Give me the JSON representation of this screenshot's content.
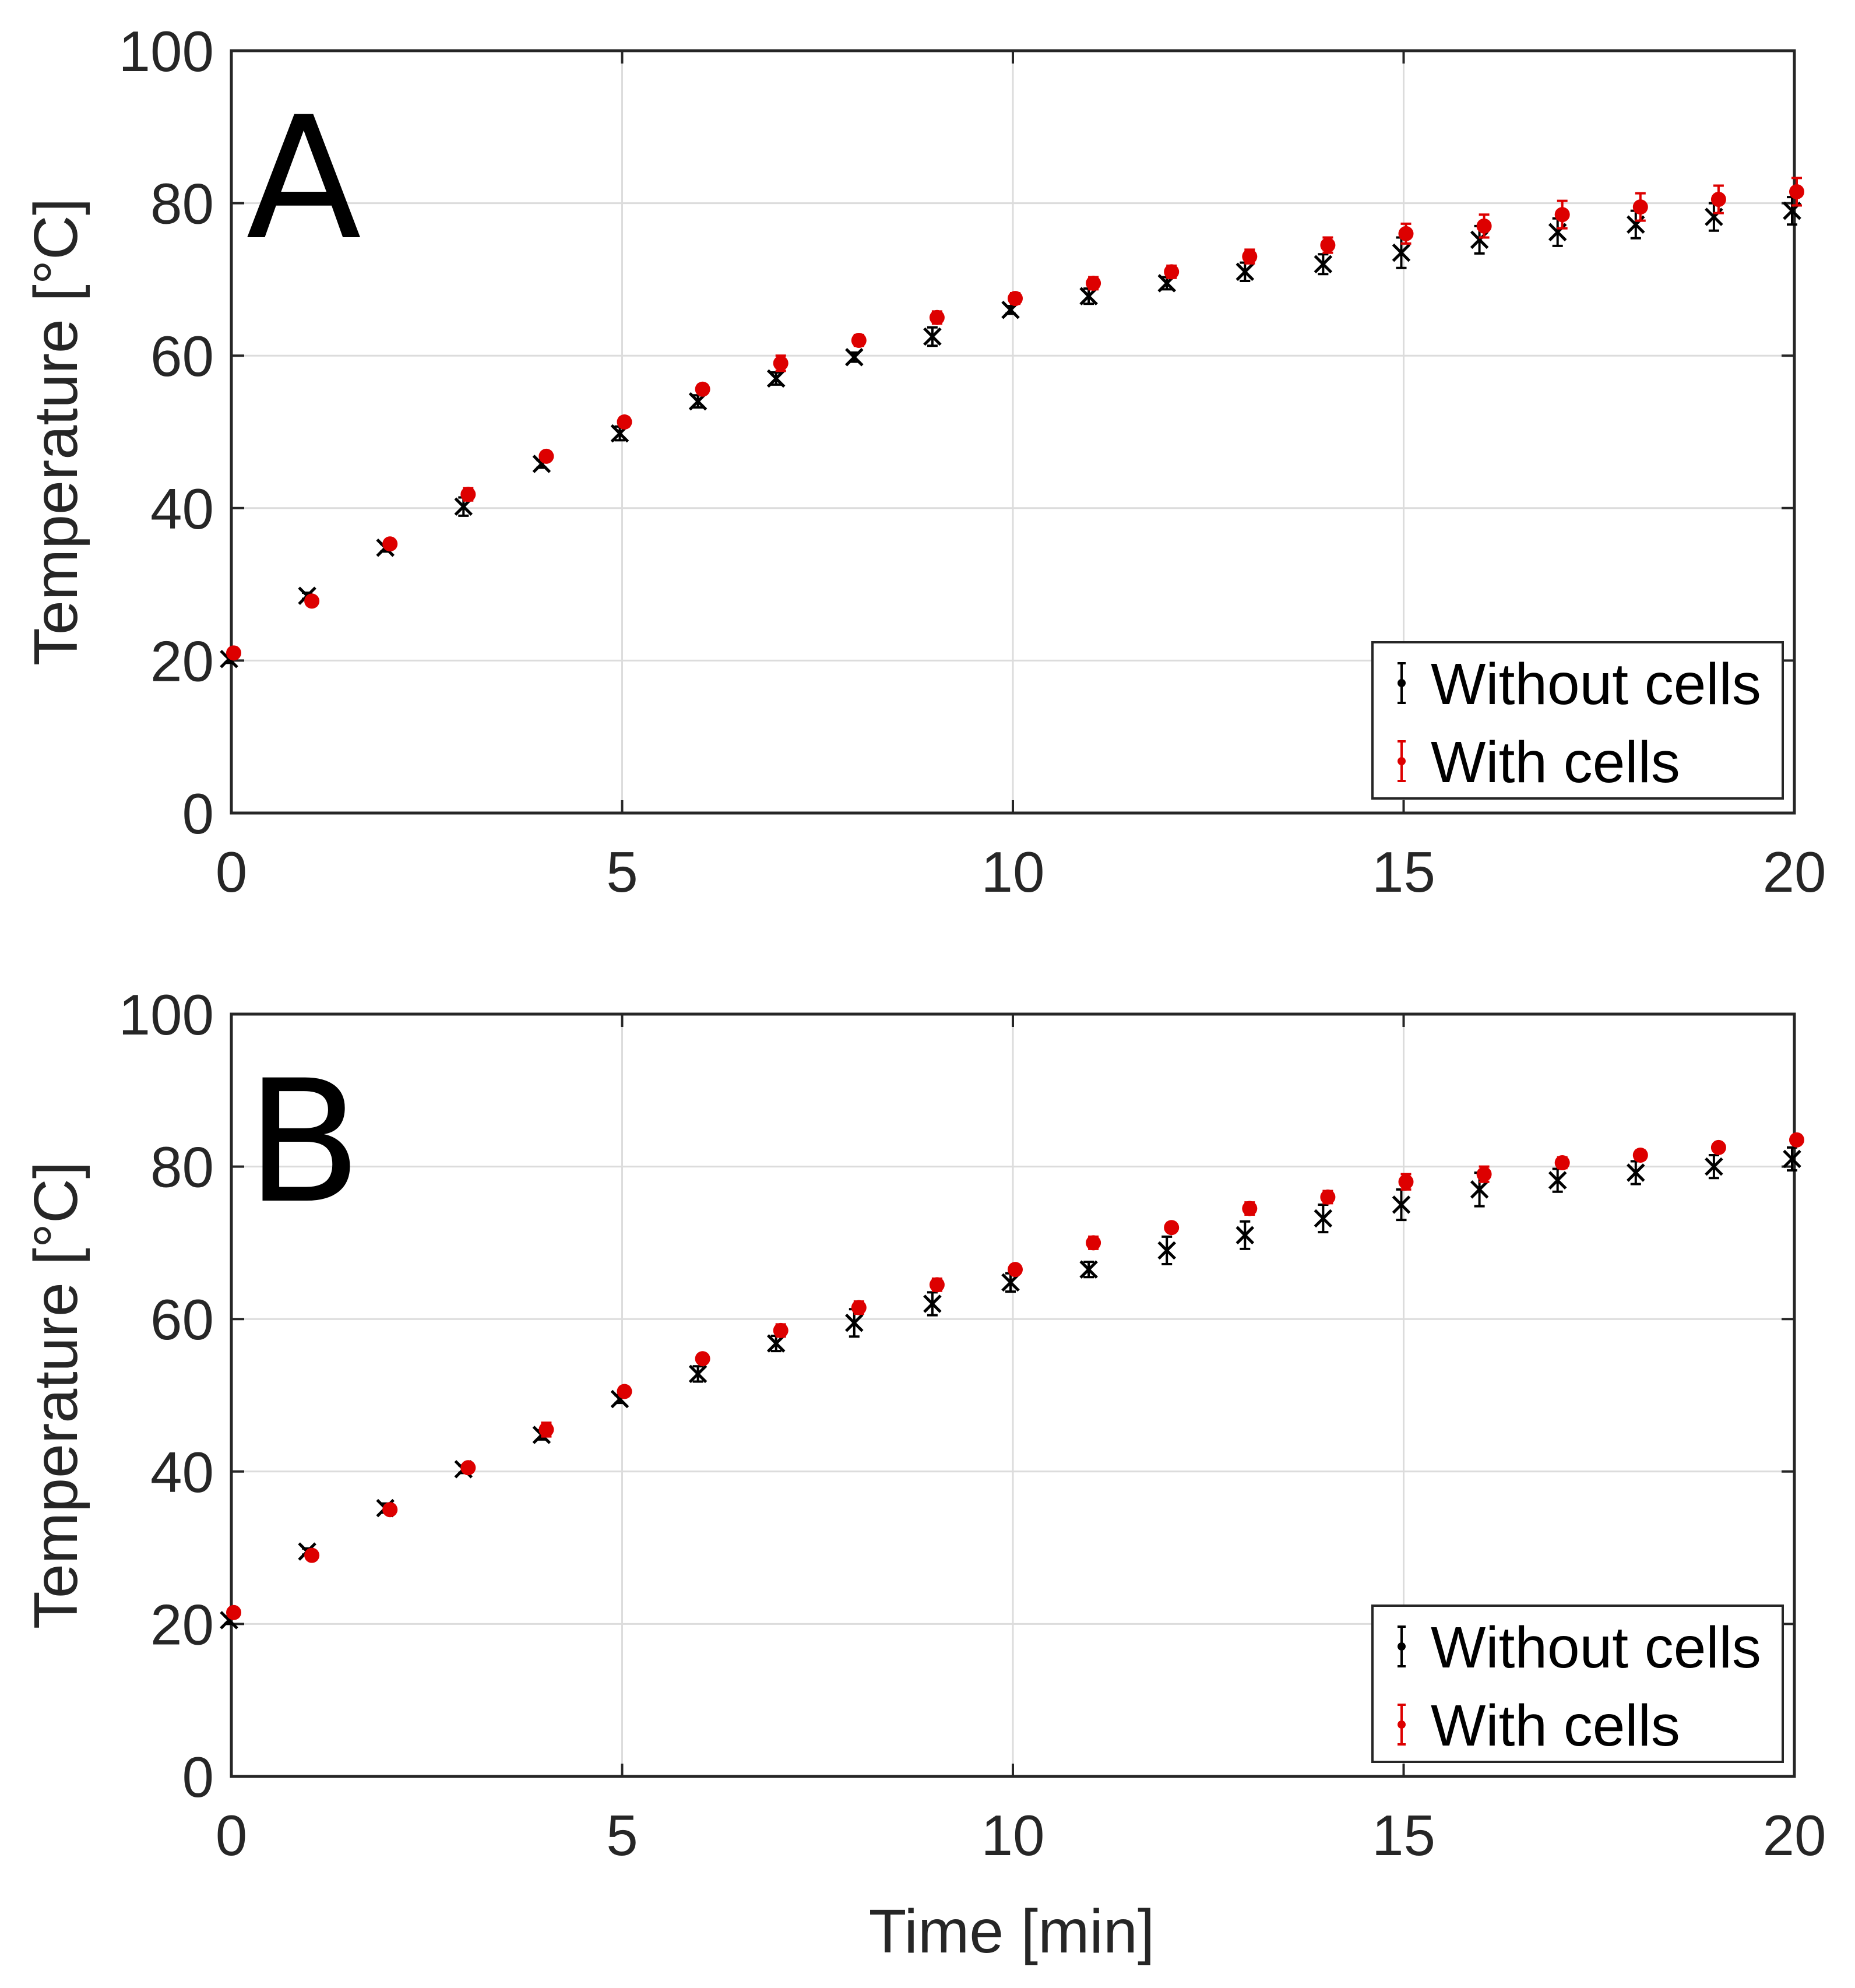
{
  "figure": {
    "xlabel": "Time [min]",
    "colors": {
      "without": "#000000",
      "with": "#dd0000",
      "grid": "#dcdcdc",
      "axis": "#262626"
    }
  },
  "chart_data": [
    {
      "type": "scatter",
      "panel_label": "A",
      "title": "",
      "xlabel": "Time [min]",
      "ylabel": "Temperature [°C]",
      "xlim": [
        0,
        20
      ],
      "ylim": [
        0,
        100
      ],
      "xticks": [
        "0",
        "5",
        "10",
        "15",
        "20"
      ],
      "yticks": [
        "0",
        "20",
        "40",
        "60",
        "80",
        "100"
      ],
      "grid": true,
      "legend_position": "bottom-right",
      "x": [
        0,
        1,
        2,
        3,
        4,
        5,
        6,
        7,
        8,
        9,
        10,
        11,
        12,
        13,
        14,
        15,
        16,
        17,
        18,
        19,
        20
      ],
      "series": [
        {
          "name": "Without cells",
          "marker": "x",
          "color": "#000000",
          "values": [
            20.2,
            28.5,
            34.8,
            40.2,
            45.8,
            49.8,
            54.0,
            57.0,
            59.8,
            62.5,
            66.0,
            67.8,
            69.5,
            71.0,
            72.0,
            73.5,
            75.2,
            76.2,
            77.2,
            78.2,
            79.0
          ],
          "errors": [
            0.5,
            0.4,
            0.5,
            1.2,
            0.5,
            0.9,
            0.8,
            0.8,
            0.6,
            1.2,
            0.5,
            1.0,
            0.8,
            1.2,
            1.3,
            2.0,
            1.8,
            1.8,
            1.8,
            1.8,
            1.8
          ]
        },
        {
          "name": "With cells",
          "marker": "circle",
          "color": "#dd0000",
          "values": [
            21.0,
            27.8,
            35.3,
            41.8,
            46.8,
            51.3,
            55.6,
            59.0,
            62.0,
            65.0,
            67.5,
            69.5,
            71.0,
            73.0,
            74.5,
            76.0,
            77.0,
            78.5,
            79.5,
            80.5,
            81.5
          ],
          "errors": [
            0.5,
            0.3,
            0.4,
            0.8,
            0.4,
            0.6,
            0.6,
            1.0,
            0.7,
            0.8,
            0.7,
            0.8,
            0.8,
            0.9,
            1.0,
            1.3,
            1.5,
            1.8,
            1.8,
            1.8,
            1.8
          ]
        }
      ]
    },
    {
      "type": "scatter",
      "panel_label": "B",
      "title": "",
      "xlabel": "Time [min]",
      "ylabel": "Temperature [°C]",
      "xlim": [
        0,
        20
      ],
      "ylim": [
        0,
        100
      ],
      "xticks": [
        "0",
        "5",
        "10",
        "15",
        "20"
      ],
      "yticks": [
        "0",
        "20",
        "40",
        "60",
        "80",
        "100"
      ],
      "grid": true,
      "legend_position": "bottom-right",
      "x": [
        0,
        1,
        2,
        3,
        4,
        5,
        6,
        7,
        8,
        9,
        10,
        11,
        12,
        13,
        14,
        15,
        16,
        17,
        18,
        19,
        20
      ],
      "series": [
        {
          "name": "Without cells",
          "marker": "x",
          "color": "#000000",
          "values": [
            20.5,
            29.5,
            35.2,
            40.3,
            44.8,
            49.5,
            52.8,
            56.8,
            59.5,
            62.0,
            64.8,
            66.5,
            69.0,
            71.0,
            73.2,
            75.0,
            77.0,
            78.2,
            79.2,
            80.0,
            81.0
          ],
          "errors": [
            0.5,
            0.4,
            0.6,
            0.5,
            0.6,
            0.5,
            1.0,
            1.0,
            1.8,
            1.5,
            1.2,
            1.0,
            1.8,
            1.8,
            1.8,
            2.0,
            2.2,
            1.5,
            1.5,
            1.5,
            1.5
          ]
        },
        {
          "name": "With cells",
          "marker": "circle",
          "color": "#dd0000",
          "values": [
            21.5,
            29.0,
            35.0,
            40.5,
            45.5,
            50.5,
            54.8,
            58.5,
            61.5,
            64.5,
            66.5,
            70.0,
            72.0,
            74.5,
            76.0,
            78.0,
            79.0,
            80.5,
            81.5,
            82.5,
            83.5
          ],
          "errors": [
            0.5,
            0.3,
            0.4,
            0.4,
            0.9,
            0.6,
            0.5,
            0.8,
            0.8,
            0.8,
            0.5,
            0.8,
            0.6,
            0.8,
            0.8,
            1.0,
            1.0,
            0.7,
            0.6,
            0.5,
            0.5
          ]
        }
      ]
    }
  ]
}
